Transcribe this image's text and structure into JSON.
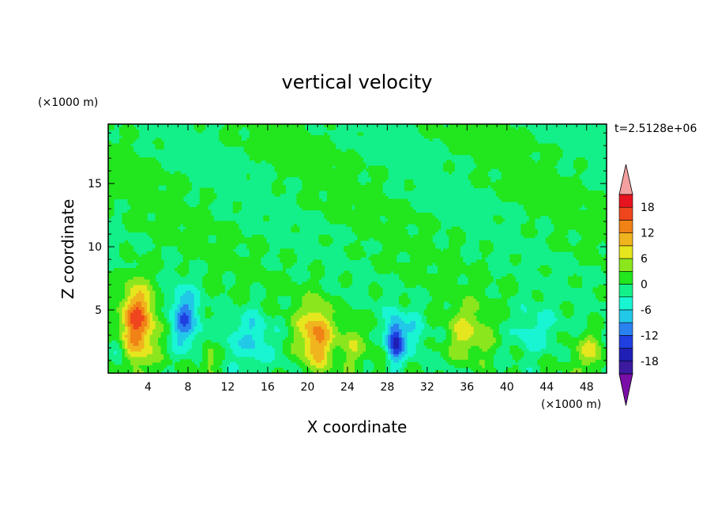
{
  "chart_data": {
    "type": "heatmap",
    "title": "vertical velocity",
    "xlabel": "X coordinate",
    "ylabel": "Z coordinate",
    "x_unit": "(×1000 m)",
    "y_unit": "(×1000 m)",
    "time_label": "t=2.5128e+06",
    "xlim": [
      0,
      50
    ],
    "ylim": [
      0,
      19.7
    ],
    "x_ticks": [
      4,
      8,
      12,
      16,
      20,
      24,
      28,
      32,
      36,
      40,
      44,
      48
    ],
    "y_ticks": [
      5,
      10,
      15
    ],
    "colorbar": {
      "levels": [
        -21,
        -18,
        -15,
        -12,
        -9,
        -6,
        -3,
        0,
        3,
        6,
        9,
        12,
        15,
        18,
        21
      ],
      "tick_labels": [
        18,
        12,
        6,
        0,
        -6,
        -12,
        -18
      ],
      "colors": [
        "#7a0fa8",
        "#3c1aa0",
        "#1f1fb5",
        "#1f3fe0",
        "#2a82f0",
        "#22c8e8",
        "#19f5d2",
        "#13f08a",
        "#22e61e",
        "#8ce61e",
        "#e6e61e",
        "#f0b41e",
        "#f08216",
        "#f0461e",
        "#e6141e",
        "#f4a0a0"
      ],
      "extend": "both"
    },
    "features": [
      {
        "x": 3.0,
        "z": 4.2,
        "w": 16,
        "sx": 1.6,
        "sz": 3.0
      },
      {
        "x": 7.7,
        "z": 4.3,
        "w": -11,
        "sx": 1.2,
        "sz": 2.4
      },
      {
        "x": 10.0,
        "z": 1.2,
        "w": 6,
        "sx": 0.8,
        "sz": 1.1
      },
      {
        "x": 14.5,
        "z": 3.0,
        "w": -6,
        "sx": 2.2,
        "sz": 2.2
      },
      {
        "x": 20.8,
        "z": 3.0,
        "w": 12,
        "sx": 1.6,
        "sz": 2.6
      },
      {
        "x": 24.5,
        "z": 2.4,
        "w": 4,
        "sx": 1.8,
        "sz": 1.8
      },
      {
        "x": 28.8,
        "z": 2.6,
        "w": -15,
        "sx": 0.9,
        "sz": 1.8
      },
      {
        "x": 30.5,
        "z": 3.2,
        "w": -4,
        "sx": 1.2,
        "sz": 1.8
      },
      {
        "x": 36.0,
        "z": 3.0,
        "w": 7,
        "sx": 2.2,
        "sz": 2.2
      },
      {
        "x": 42.5,
        "z": 3.2,
        "w": -5,
        "sx": 2.5,
        "sz": 2.2
      },
      {
        "x": 48.3,
        "z": 1.8,
        "w": 7,
        "sx": 1.3,
        "sz": 1.4
      },
      {
        "x": 1.0,
        "z": 1.6,
        "w": -4,
        "sx": 0.8,
        "sz": 1.5
      }
    ]
  }
}
